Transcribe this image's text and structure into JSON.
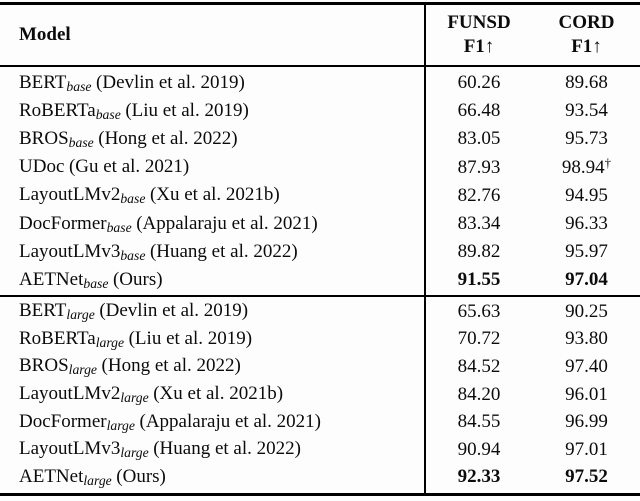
{
  "colors": {
    "ink": "#000000",
    "background": "#fdfdfd"
  },
  "table": {
    "header": {
      "model_label": "Model",
      "funsd_label": "FUNSD",
      "funsd_metric": "F1↑",
      "cord_label": "CORD",
      "cord_metric": "F1↑"
    },
    "base_rows": [
      {
        "name": "BERT",
        "sub": "base",
        "cite": "(Devlin et al. 2019)",
        "funsd": "60.26",
        "cord": "89.68",
        "cord_sup": ""
      },
      {
        "name": "RoBERTa",
        "sub": "base",
        "cite": "(Liu et al. 2019)",
        "funsd": "66.48",
        "cord": "93.54",
        "cord_sup": ""
      },
      {
        "name": "BROS",
        "sub": "base",
        "cite": "(Hong et al. 2022)",
        "funsd": "83.05",
        "cord": "95.73",
        "cord_sup": ""
      },
      {
        "name": "UDoc",
        "sub": "",
        "cite": "(Gu et al. 2021)",
        "funsd": "87.93",
        "cord": "98.94",
        "cord_sup": "†"
      },
      {
        "name": "LayoutLMv2",
        "sub": "base",
        "cite": "(Xu et al. 2021b)",
        "funsd": "82.76",
        "cord": "94.95",
        "cord_sup": ""
      },
      {
        "name": "DocFormer",
        "sub": "base",
        "cite": "(Appalaraju et al. 2021)",
        "funsd": "83.34",
        "cord": "96.33",
        "cord_sup": ""
      },
      {
        "name": "LayoutLMv3",
        "sub": "base",
        "cite": "(Huang et al. 2022)",
        "funsd": "89.82",
        "cord": "95.97",
        "cord_sup": ""
      },
      {
        "name": "AETNet",
        "sub": "base",
        "cite": "(Ours)",
        "funsd": "91.55",
        "cord": "97.04",
        "cord_sup": ""
      }
    ],
    "large_rows": [
      {
        "name": "BERT",
        "sub": "large",
        "cite": "(Devlin et al. 2019)",
        "funsd": "65.63",
        "cord": "90.25",
        "cord_sup": ""
      },
      {
        "name": "RoBERTa",
        "sub": "large",
        "cite": "(Liu et al. 2019)",
        "funsd": "70.72",
        "cord": "93.80",
        "cord_sup": ""
      },
      {
        "name": "BROS",
        "sub": "large",
        "cite": "(Hong et al. 2022)",
        "funsd": "84.52",
        "cord": "97.40",
        "cord_sup": ""
      },
      {
        "name": "LayoutLMv2",
        "sub": "large",
        "cite": "(Xu et al. 2021b)",
        "funsd": "84.20",
        "cord": "96.01",
        "cord_sup": ""
      },
      {
        "name": "DocFormer",
        "sub": "large",
        "cite": "(Appalaraju et al. 2021)",
        "funsd": "84.55",
        "cord": "96.99",
        "cord_sup": ""
      },
      {
        "name": "LayoutLMv3",
        "sub": "large",
        "cite": "(Huang et al. 2022)",
        "funsd": "90.94",
        "cord": "97.01",
        "cord_sup": ""
      },
      {
        "name": "AETNet",
        "sub": "large",
        "cite": "(Ours)",
        "funsd": "92.33",
        "cord": "97.52",
        "cord_sup": ""
      }
    ]
  }
}
